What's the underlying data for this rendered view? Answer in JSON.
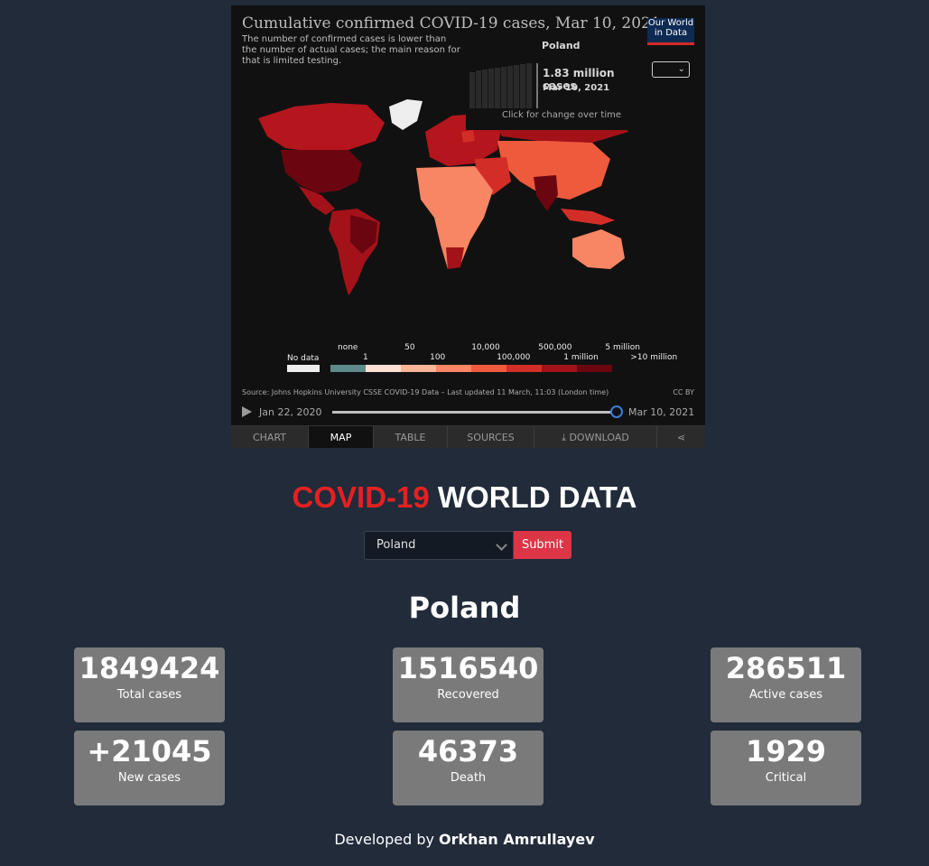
{
  "widget": {
    "title": "Cumulative confirmed COVID-19 cases, Mar 10, 2021",
    "subtitle": "The number of confirmed cases is lower than the number of actual cases; the main reason for that is limited testing.",
    "logo_line1": "Our World",
    "logo_line2": "in Data",
    "tooltip": {
      "country": "Poland",
      "value": "1.83 million cases",
      "date": "Mar 10, 2021",
      "hint": "Click for change over time"
    },
    "legend": {
      "no_data": "No data",
      "top_labels": [
        "none",
        "50",
        "10,000",
        "500,000",
        "5 million"
      ],
      "bottom_labels": [
        "1",
        "100",
        "100,000",
        "1 million",
        ">10 million"
      ],
      "colors": [
        "#5d8a8a",
        "#fde0d2",
        "#fbb496",
        "#f88564",
        "#ee5a3c",
        "#d22e27",
        "#a31219",
        "#6b0610"
      ]
    },
    "source": "Source: Johns Hopkins University CSSE COVID-19 Data – Last updated 11 March, 11:03 (London time)",
    "license": "CC BY",
    "timeline": {
      "start": "Jan 22, 2020",
      "end": "Mar 10, 2021"
    },
    "tabs": [
      "CHART",
      "MAP",
      "TABLE",
      "SOURCES",
      "⤓ DOWNLOAD",
      "⋖"
    ],
    "active_tab": "MAP"
  },
  "page": {
    "title_red": "COVID-19",
    "title_white": "WORLD DATA",
    "select_value": "Poland",
    "submit_label": "Submit",
    "country": "Poland"
  },
  "stats": [
    {
      "value": "1849424",
      "label": "Total cases"
    },
    {
      "value": "1516540",
      "label": "Recovered"
    },
    {
      "value": "286511",
      "label": "Active cases"
    },
    {
      "value": "+21045",
      "label": "New cases"
    },
    {
      "value": "46373",
      "label": "Death"
    },
    {
      "value": "1929",
      "label": "Critical"
    }
  ],
  "footer": {
    "prefix": "Developed by",
    "author": "Orkhan Amrullayev"
  }
}
